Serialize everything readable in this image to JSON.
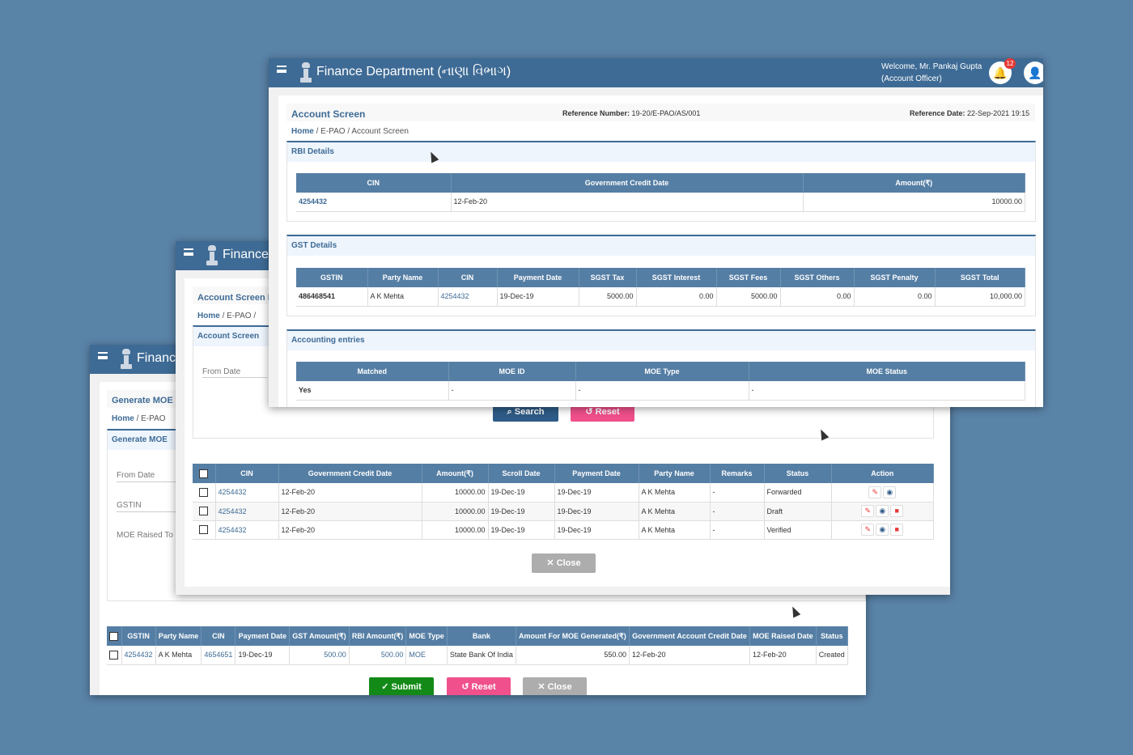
{
  "dept_title": "Finance Department (નાણા વિભાગ)",
  "dept_title_short": "Finance",
  "dept_title_short_l": "Finance",
  "win1": {
    "title": "Generate MOE",
    "breadcrumb": {
      "home": "Home",
      "sep": "/",
      "epao": "E-PAO"
    },
    "section": "Generate MOE",
    "from_date": "From Date",
    "gstin": "GSTIN",
    "moe_raised": "MOE Raised To",
    "columns": [
      "GSTIN",
      "Party Name",
      "CIN",
      "Payment Date",
      "GST Amount(₹)",
      "RBI Amount(₹)",
      "MOE Type",
      "Bank",
      "Amount For MOE Generated(₹)",
      "Government Account Credit Date",
      "MOE Raised Date",
      "Status"
    ],
    "row": [
      "4254432",
      "A K Mehta",
      "4654651",
      "19-Dec-19",
      "500.00",
      "500.00",
      "MOE",
      "State Bank Of India",
      "550.00",
      "12-Feb-20",
      "12-Feb-20",
      "Created"
    ],
    "submit": "Submit",
    "reset": "Reset",
    "close": "Close"
  },
  "win2": {
    "title": "Account Screen L",
    "breadcrumb": {
      "home": "Home",
      "sep": "/",
      "epao": "E-PAO",
      "sep2": "/"
    },
    "section": "Account Screen",
    "from_date": "From Date",
    "search": "Search",
    "reset": "Reset",
    "columns": [
      "CIN",
      "Government Credit Date",
      "Amount(₹)",
      "Scroll Date",
      "Payment Date",
      "Party Name",
      "Remarks",
      "Status",
      "Action"
    ],
    "rows": [
      [
        "4254432",
        "12-Feb-20",
        "10000.00",
        "19-Dec-19",
        "19-Dec-19",
        "A K Mehta",
        "-",
        "Forwarded"
      ],
      [
        "4254432",
        "12-Feb-20",
        "10000.00",
        "19-Dec-19",
        "19-Dec-19",
        "A K Mehta",
        "-",
        "Draft"
      ],
      [
        "4254432",
        "12-Feb-20",
        "10000.00",
        "19-Dec-19",
        "19-Dec-19",
        "A K Mehta",
        "-",
        "Verified"
      ]
    ],
    "close": "Close"
  },
  "win3": {
    "welcome": "Welcome, Mr. Pankaj Gupta",
    "role": "(Account Officer)",
    "notif_count": "12",
    "title": "Account Screen",
    "ref_no_label": "Reference Number:",
    "ref_no": "19-20/E-PAO/AS/001",
    "ref_date_label": "Reference Date:",
    "ref_date": "22-Sep-2021 19:15",
    "breadcrumb": {
      "home": "Home",
      "sep": "/",
      "epao": "E-PAO",
      "sep2": "/",
      "current": "Account Screen"
    },
    "rbi": {
      "title": "RBI Details",
      "columns": [
        "CIN",
        "Government Credit Date",
        "Amount(₹)"
      ],
      "row": [
        "4254432",
        "12-Feb-20",
        "10000.00"
      ]
    },
    "gst": {
      "title": "GST Details",
      "columns": [
        "GSTIN",
        "Party Name",
        "CIN",
        "Payment Date",
        "SGST Tax",
        "SGST Interest",
        "SGST Fees",
        "SGST Others",
        "SGST Penalty",
        "SGST Total"
      ],
      "row": [
        "486468541",
        "A K Mehta",
        "4254432",
        "19-Dec-19",
        "5000.00",
        "0.00",
        "5000.00",
        "0.00",
        "0.00",
        "10,000.00"
      ]
    },
    "acct": {
      "title": "Accounting entries",
      "columns": [
        "Matched",
        "MOE ID",
        "MOE Type",
        "MOE Status"
      ],
      "row": [
        "Yes",
        "-",
        "-",
        "-"
      ]
    }
  }
}
